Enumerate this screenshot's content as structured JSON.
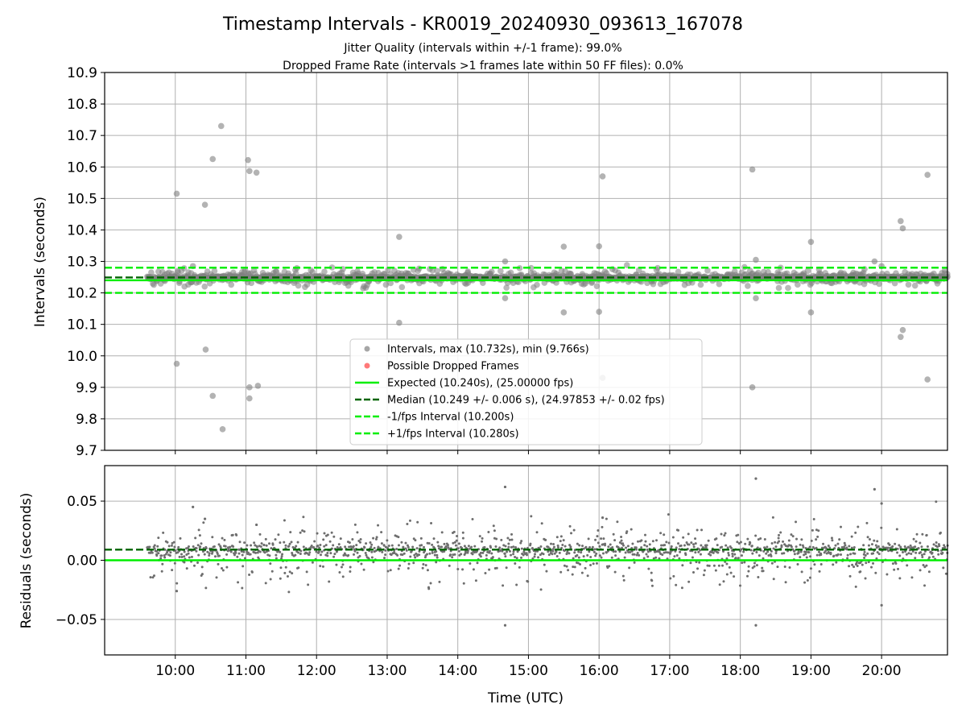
{
  "colors": {
    "scatter": "#808080",
    "dropped": "#ff4040",
    "expected": "#00ee00",
    "median": "#006400",
    "fps_bound": "#00ee00",
    "grid": "#b0b0b0"
  },
  "chart_data": [
    {
      "type": "scatter",
      "title": "Timestamp Intervals - KR0019_20240930_093613_167078",
      "subtitle_lines": [
        "Jitter Quality (intervals within +/-1 frame): 99.0%",
        "Dropped Frame Rate (intervals >1 frames late within 50 FF files): 0.0%"
      ],
      "ylabel": "Intervals (seconds)",
      "xlabel": "",
      "xlim_hours": [
        9.0,
        20.933
      ],
      "ylim": [
        9.7,
        10.9
      ],
      "yticks": [
        9.7,
        9.8,
        9.9,
        10.0,
        10.1,
        10.2,
        10.3,
        10.4,
        10.5,
        10.6,
        10.7,
        10.8,
        10.9
      ],
      "ytick_labels": [
        "9.7",
        "9.8",
        "9.9",
        "10.0",
        "10.1",
        "10.2",
        "10.3",
        "10.4",
        "10.5",
        "10.6",
        "10.7",
        "10.8",
        "10.9"
      ],
      "grid": true,
      "legend_position": "lower-center",
      "legend": [
        {
          "label": "Intervals, max (10.732s), min (9.766s)",
          "style": "marker",
          "color": "#808080"
        },
        {
          "label": "Possible Dropped Frames",
          "style": "marker",
          "color": "#ff4040"
        },
        {
          "label": "Expected (10.240s), (25.00000 fps)",
          "style": "solid",
          "color": "#00ee00"
        },
        {
          "label": "Median (10.249 +/- 0.006 s), (24.97853 +/- 0.02 fps)",
          "style": "dashed",
          "color": "#006400"
        },
        {
          "label": "-1/fps Interval (10.200s)",
          "style": "dashed",
          "color": "#00ee00"
        },
        {
          "label": "+1/fps Interval (10.280s)",
          "style": "dashed",
          "color": "#00ee00"
        }
      ],
      "reference_lines": {
        "expected": 10.24,
        "median": 10.249,
        "minus_fps": 10.2,
        "plus_fps": 10.28
      },
      "series_range_hours": [
        9.6,
        20.933
      ],
      "outliers": [
        {
          "x": 10.02,
          "y": 10.515
        },
        {
          "x": 10.02,
          "y": 9.975
        },
        {
          "x": 10.42,
          "y": 10.48
        },
        {
          "x": 10.53,
          "y": 10.625
        },
        {
          "x": 10.65,
          "y": 10.73
        },
        {
          "x": 10.43,
          "y": 10.02
        },
        {
          "x": 10.53,
          "y": 9.873
        },
        {
          "x": 10.67,
          "y": 9.767
        },
        {
          "x": 11.03,
          "y": 10.622
        },
        {
          "x": 11.05,
          "y": 10.587
        },
        {
          "x": 11.15,
          "y": 10.582
        },
        {
          "x": 11.05,
          "y": 9.9
        },
        {
          "x": 11.17,
          "y": 9.905
        },
        {
          "x": 11.05,
          "y": 9.865
        },
        {
          "x": 13.17,
          "y": 10.378
        },
        {
          "x": 13.17,
          "y": 10.105
        },
        {
          "x": 14.67,
          "y": 10.3
        },
        {
          "x": 14.67,
          "y": 10.183
        },
        {
          "x": 15.5,
          "y": 10.347
        },
        {
          "x": 15.5,
          "y": 10.138
        },
        {
          "x": 16.0,
          "y": 10.348
        },
        {
          "x": 16.0,
          "y": 10.14
        },
        {
          "x": 16.05,
          "y": 10.57
        },
        {
          "x": 16.05,
          "y": 9.93
        },
        {
          "x": 18.17,
          "y": 10.592
        },
        {
          "x": 18.17,
          "y": 9.9
        },
        {
          "x": 18.22,
          "y": 10.305
        },
        {
          "x": 18.22,
          "y": 10.183
        },
        {
          "x": 19.0,
          "y": 10.362
        },
        {
          "x": 19.0,
          "y": 10.138
        },
        {
          "x": 20.27,
          "y": 10.428
        },
        {
          "x": 20.3,
          "y": 10.405
        },
        {
          "x": 20.27,
          "y": 10.06
        },
        {
          "x": 20.3,
          "y": 10.082
        },
        {
          "x": 20.65,
          "y": 10.575
        },
        {
          "x": 20.65,
          "y": 9.925
        },
        {
          "x": 19.9,
          "y": 10.3
        },
        {
          "x": 20.0,
          "y": 10.285
        },
        {
          "x": 10.25,
          "y": 10.285
        }
      ]
    },
    {
      "type": "scatter",
      "xlabel": "Time (UTC)",
      "ylabel": "Residuals (seconds)",
      "xlim_hours": [
        9.0,
        20.933
      ],
      "ylim": [
        -0.08,
        0.08
      ],
      "yticks": [
        -0.05,
        0.0,
        0.05
      ],
      "ytick_labels": [
        "−0.05",
        "0.00",
        "0.05"
      ],
      "xticks_hours": [
        10,
        11,
        12,
        13,
        14,
        15,
        16,
        17,
        18,
        19,
        20
      ],
      "xtick_labels": [
        "10:00",
        "11:00",
        "12:00",
        "13:00",
        "14:00",
        "15:00",
        "16:00",
        "17:00",
        "18:00",
        "19:00",
        "20:00"
      ],
      "grid": true,
      "reference_lines": {
        "zero": 0.0,
        "median_offset": 0.009
      },
      "series_range_hours": [
        9.6,
        20.933
      ],
      "outliers": [
        {
          "x": 10.25,
          "y": 0.045
        },
        {
          "x": 10.42,
          "y": 0.035
        },
        {
          "x": 14.67,
          "y": 0.062
        },
        {
          "x": 14.67,
          "y": -0.055
        },
        {
          "x": 18.22,
          "y": 0.069
        },
        {
          "x": 18.22,
          "y": -0.055
        },
        {
          "x": 19.9,
          "y": 0.06
        },
        {
          "x": 20.0,
          "y": 0.048
        },
        {
          "x": 20.0,
          "y": -0.038
        },
        {
          "x": 16.05,
          "y": 0.036
        },
        {
          "x": 11.15,
          "y": 0.03
        },
        {
          "x": 10.02,
          "y": -0.026
        }
      ]
    }
  ]
}
